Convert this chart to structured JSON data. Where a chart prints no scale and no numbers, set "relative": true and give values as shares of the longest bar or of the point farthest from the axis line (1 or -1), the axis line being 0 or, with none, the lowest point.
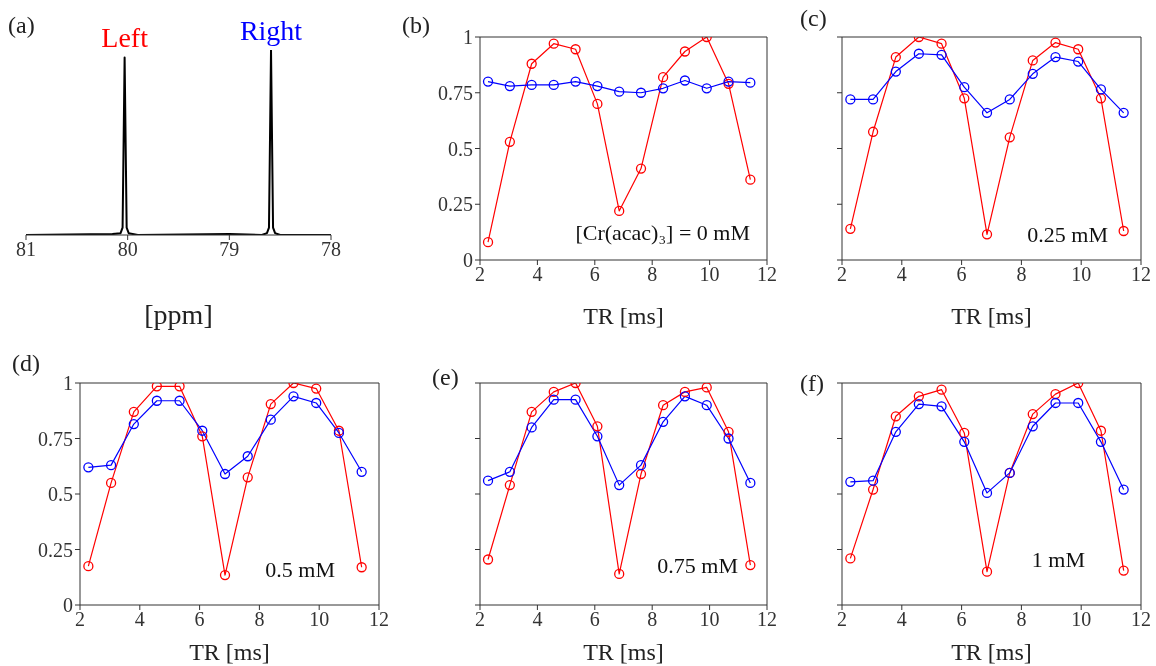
{
  "chart_data": [
    {
      "type": "line",
      "title": "(a)",
      "xlabel": "[ppm]",
      "relative": true,
      "xlim": [
        81,
        78
      ],
      "xticks": [
        81,
        80,
        79,
        78
      ],
      "x": [
        81,
        80.15,
        80.07,
        80.05,
        80.03,
        80.01,
        79.99,
        79.9,
        79,
        78.68,
        78.63,
        78.61,
        78.59,
        78.57,
        78.55,
        78.5,
        78
      ],
      "series": [
        {
          "color": "#000000",
          "values": [
            0,
            0.005,
            0.01,
            0.04,
            0.96,
            0.04,
            0.01,
            0,
            0.005,
            0,
            0.01,
            0.04,
            1,
            0.04,
            0.01,
            0,
            0
          ]
        }
      ],
      "annotations": [
        {
          "text": "Left",
          "x": 80.03,
          "y": 0.96
        },
        {
          "text": "Right",
          "x": 78.59,
          "y": 1
        }
      ]
    },
    {
      "type": "line",
      "title": "(b)",
      "xlabel": "TR [ms]",
      "xlim": [
        2,
        12
      ],
      "xticks": [
        2,
        4,
        6,
        8,
        10,
        12
      ],
      "ylim": [
        0,
        1
      ],
      "yticks": [
        0,
        0.25,
        0.5,
        0.75,
        1
      ],
      "marker": "circle",
      "x": [
        2.28,
        3.04,
        3.8,
        4.57,
        5.33,
        6.09,
        6.85,
        7.61,
        8.38,
        9.14,
        9.9,
        10.66,
        11.42
      ],
      "series": [
        {
          "color": "#ff0000",
          "values": [
            0.08,
            0.53,
            0.88,
            0.97,
            0.945,
            0.7,
            0.22,
            0.41,
            0.82,
            0.935,
            1,
            0.79,
            0.36
          ]
        },
        {
          "color": "#0000ff",
          "values": [
            0.8,
            0.78,
            0.785,
            0.785,
            0.8,
            0.78,
            0.755,
            0.75,
            0.77,
            0.805,
            0.77,
            0.8,
            0.795
          ]
        }
      ],
      "annotations": [
        "[Cr(acac)₃] = 0 mM"
      ]
    },
    {
      "type": "line",
      "title": "(c)",
      "xlabel": "TR [ms]",
      "xlim": [
        2,
        12
      ],
      "xticks": [
        2,
        4,
        6,
        8,
        10,
        12
      ],
      "ylim": [
        0,
        1
      ],
      "yticks": [
        {
          "value": 0,
          "label": null
        },
        {
          "value": 0.25,
          "label": null
        },
        {
          "value": 0.5,
          "label": null
        },
        {
          "value": 0.75,
          "label": null
        },
        {
          "value": 1,
          "label": null
        }
      ],
      "tick_labels": "x",
      "marker": "circle",
      "x": [
        2.28,
        3.04,
        3.8,
        4.57,
        5.33,
        6.09,
        6.85,
        7.61,
        8.38,
        9.14,
        9.9,
        10.66,
        11.42
      ],
      "series": [
        {
          "color": "#ff0000",
          "values": [
            0.14,
            0.575,
            0.91,
            1,
            0.97,
            0.725,
            0.115,
            0.55,
            0.895,
            0.975,
            0.945,
            0.725,
            0.13
          ]
        },
        {
          "color": "#0000ff",
          "values": [
            0.72,
            0.72,
            0.845,
            0.925,
            0.92,
            0.775,
            0.66,
            0.72,
            0.835,
            0.91,
            0.89,
            0.765,
            0.66
          ]
        }
      ],
      "annotations": [
        "0.25 mM"
      ]
    },
    {
      "type": "line",
      "title": "(d)",
      "xlabel": "TR [ms]",
      "xlim": [
        2,
        12
      ],
      "xticks": [
        2,
        4,
        6,
        8,
        10,
        12
      ],
      "ylim": [
        0,
        1
      ],
      "yticks": [
        0,
        0.25,
        0.5,
        0.75,
        1
      ],
      "marker": "circle",
      "x": [
        2.28,
        3.04,
        3.8,
        4.57,
        5.33,
        6.09,
        6.85,
        7.61,
        8.38,
        9.14,
        9.9,
        10.66,
        11.42
      ],
      "series": [
        {
          "color": "#ff0000",
          "values": [
            0.175,
            0.55,
            0.87,
            0.985,
            0.985,
            0.76,
            0.135,
            0.575,
            0.905,
            1,
            0.975,
            0.785,
            0.17
          ]
        },
        {
          "color": "#0000ff",
          "values": [
            0.62,
            0.63,
            0.815,
            0.92,
            0.92,
            0.785,
            0.59,
            0.67,
            0.835,
            0.94,
            0.91,
            0.775,
            0.6
          ]
        }
      ],
      "annotations": [
        "0.5 mM"
      ]
    },
    {
      "type": "line",
      "title": "(e)",
      "xlabel": "TR [ms]",
      "xlim": [
        2,
        12
      ],
      "xticks": [
        2,
        4,
        6,
        8,
        10,
        12
      ],
      "ylim": [
        0,
        1
      ],
      "yticks": [
        {
          "value": 0,
          "label": null
        },
        {
          "value": 0.25,
          "label": null
        },
        {
          "value": 0.5,
          "label": null
        },
        {
          "value": 0.75,
          "label": null
        },
        {
          "value": 1,
          "label": null
        }
      ],
      "tick_labels": "x",
      "marker": "circle",
      "x": [
        2.28,
        3.04,
        3.8,
        4.57,
        5.33,
        6.09,
        6.85,
        7.61,
        8.38,
        9.14,
        9.9,
        10.66,
        11.42
      ],
      "series": [
        {
          "color": "#ff0000",
          "values": [
            0.205,
            0.54,
            0.87,
            0.96,
            1,
            0.805,
            0.14,
            0.59,
            0.9,
            0.96,
            0.98,
            0.78,
            0.18
          ]
        },
        {
          "color": "#0000ff",
          "values": [
            0.56,
            0.6,
            0.8,
            0.925,
            0.925,
            0.76,
            0.54,
            0.63,
            0.825,
            0.94,
            0.9,
            0.75,
            0.55
          ]
        }
      ],
      "annotations": [
        "0.75 mM"
      ]
    },
    {
      "type": "line",
      "title": "(f)",
      "xlabel": "TR [ms]",
      "xlim": [
        2,
        12
      ],
      "xticks": [
        2,
        4,
        6,
        8,
        10,
        12
      ],
      "ylim": [
        0,
        1
      ],
      "yticks": [
        {
          "value": 0,
          "label": null
        },
        {
          "value": 0.25,
          "label": null
        },
        {
          "value": 0.5,
          "label": null
        },
        {
          "value": 0.75,
          "label": null
        },
        {
          "value": 1,
          "label": null
        }
      ],
      "tick_labels": "x",
      "marker": "circle",
      "x": [
        2.28,
        3.04,
        3.8,
        4.57,
        5.33,
        6.09,
        6.85,
        7.61,
        8.38,
        9.14,
        9.9,
        10.66,
        11.42
      ],
      "series": [
        {
          "color": "#ff0000",
          "values": [
            0.21,
            0.52,
            0.85,
            0.94,
            0.97,
            0.775,
            0.15,
            0.595,
            0.86,
            0.95,
            1,
            0.785,
            0.155
          ]
        },
        {
          "color": "#0000ff",
          "values": [
            0.555,
            0.56,
            0.78,
            0.905,
            0.895,
            0.735,
            0.505,
            0.595,
            0.805,
            0.91,
            0.91,
            0.735,
            0.52
          ]
        }
      ],
      "annotations": [
        "1 mM"
      ]
    }
  ]
}
